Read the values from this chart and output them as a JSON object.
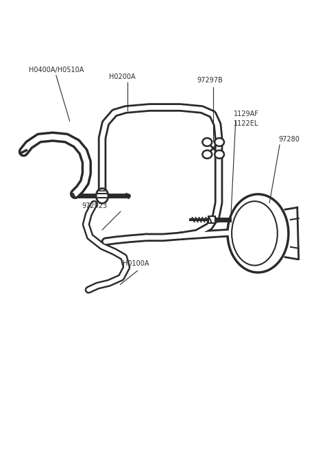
{
  "bg_color": "#ffffff",
  "line_color": "#2a2a2a",
  "text_color": "#2a2a2a",
  "fig_w": 4.8,
  "fig_h": 6.57,
  "labels": {
    "H0400A_H0510A": "H0400A/H0510A",
    "H0200A": "H0200A",
    "97297B": "97297B",
    "1129AF": "1129AF",
    "1122EL": "1122EL",
    "97280": "97280",
    "972923": "972923",
    "H0100A": "H0100A"
  }
}
